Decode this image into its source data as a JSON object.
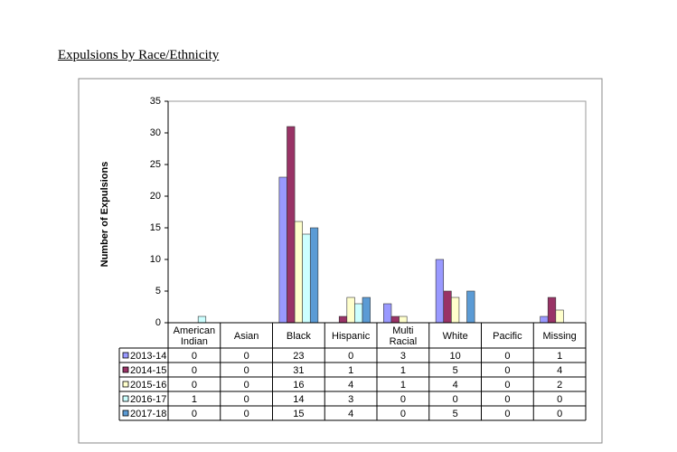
{
  "chart_data": {
    "type": "bar",
    "title": "Expulsions by Race/Ethnicity",
    "y_label": "Number of Expulsions",
    "categories": [
      "American Indian",
      "Asian",
      "Black",
      "Hispanic",
      "Multi Racial",
      "White",
      "Pacific",
      "Missing"
    ],
    "series": [
      {
        "name": "2013-14",
        "color": "#9999ff",
        "values": [
          0,
          0,
          23,
          0,
          3,
          10,
          0,
          1
        ]
      },
      {
        "name": "2014-15",
        "color": "#993366",
        "values": [
          0,
          0,
          31,
          1,
          1,
          5,
          0,
          4
        ]
      },
      {
        "name": "2015-16",
        "color": "#ffffcc",
        "values": [
          0,
          0,
          16,
          4,
          1,
          4,
          0,
          2
        ]
      },
      {
        "name": "2016-17",
        "color": "#ccffff",
        "values": [
          1,
          0,
          14,
          3,
          0,
          0,
          0,
          0
        ]
      },
      {
        "name": "2017-18",
        "color": "#5b9bd5",
        "values": [
          0,
          0,
          15,
          4,
          0,
          5,
          0,
          0
        ]
      }
    ],
    "ylim": [
      0,
      35
    ],
    "yticks": [
      0,
      5,
      10,
      15,
      20,
      25,
      30,
      35
    ],
    "grid": false,
    "legend": "table"
  }
}
